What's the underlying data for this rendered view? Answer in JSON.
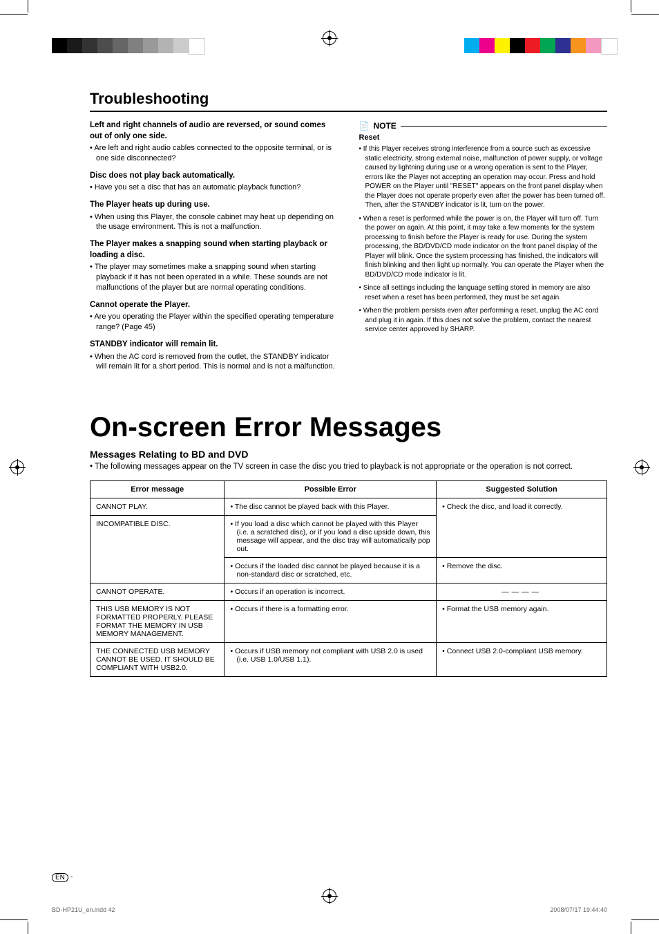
{
  "print_marks": {
    "bw_swatches": [
      "#000000",
      "#1a1a1a",
      "#333333",
      "#4d4d4d",
      "#666666",
      "#808080",
      "#999999",
      "#b3b3b3",
      "#cccccc",
      "#ffffff"
    ],
    "color_swatches": [
      "#00aeef",
      "#ec008c",
      "#fff200",
      "#000000",
      "#ed1c24",
      "#00a651",
      "#2e3192",
      "#f7941d",
      "#f49ac1",
      "#ffffff"
    ]
  },
  "section_title": "Troubleshooting",
  "troubleshooting_left": [
    {
      "head": "Left and right channels of audio are reversed, or sound comes out of only one side.",
      "body": "Are left and right audio cables connected to the opposite terminal, or is one side disconnected?"
    },
    {
      "head": "Disc does not play back automatically.",
      "body": "Have you set a disc that has an automatic playback function?"
    },
    {
      "head": "The Player heats up during use.",
      "body": "When using this Player, the console cabinet may heat up depending on the usage environment. This is not a malfunction."
    },
    {
      "head": "The Player makes a snapping sound when starting playback or loading a disc.",
      "body": "The player may sometimes make a snapping sound when starting playback if it has not been operated in a while. These sounds are not malfunctions of the player but are normal operating conditions."
    },
    {
      "head": "Cannot operate the Player.",
      "body": "Are you operating the Player within the specified operating temperature range? (Page 45)"
    },
    {
      "head": "STANDBY indicator will remain lit.",
      "body": "When the AC cord is removed from the outlet, the STANDBY indicator will remain lit for a short period. This is normal and is not a malfunction."
    }
  ],
  "note": {
    "label": "NOTE",
    "sub": "Reset",
    "bullets": [
      "If this Player receives strong interference from a source such as excessive static electricity, strong external noise, malfunction of power supply, or voltage caused by lightning during use or a wrong operation is sent to the Player, errors like the Player not accepting an operation may occur. Press and hold POWER on the Player until \"RESET\" appears on the front panel display when the Player does not operate properly even after the power has been turned off. Then, after the STANDBY indicator is lit, turn on the power.",
      "When a reset is performed while the power is on, the Player will turn off. Turn the power on again. At this point, it may take a few moments for the system processing to finish before the Player is ready for use. During the system processing, the BD/DVD/CD mode indicator on the front panel display of the Player will blink. Once the system processing has finished, the indicators will finish blinking and then light up normally. You can operate the Player when the BD/DVD/CD mode indicator is lit.",
      "Since all settings including the language setting stored in memory are also reset when a reset has been performed, they must be set again.",
      "When the problem persists even after performing a reset, unplug the AC cord and plug it in again. If this does not solve the problem, contact the nearest service center approved by SHARP."
    ]
  },
  "big_title": "On-screen Error Messages",
  "sub_title": "Messages Relating to BD and DVD",
  "intro": "The following messages appear on the TV screen in case the disc you tried to playback is not appropriate or the operation is not correct.",
  "table": {
    "headers": [
      "Error message",
      "Possible Error",
      "Suggested Solution"
    ],
    "col_widths": [
      "26%",
      "41%",
      "33%"
    ],
    "rows": [
      {
        "msg": "CANNOT PLAY.",
        "err": "The disc cannot be played back with this Player.",
        "sol": "Check the disc, and load it correctly.",
        "rowspan_sol": 1
      },
      {
        "msg": "INCOMPATIBLE DISC.",
        "err": "If you load a disc which cannot be played with this Player (i.e. a scratched disc), or if you load a disc upside down, this message will appear, and the disc tray will automatically pop out.",
        "sol": "",
        "msg_rowspan": 2,
        "sol_merge_up": true
      },
      {
        "msg": "",
        "err": "Occurs if the loaded disc cannot be played because it is a non-standard disc or scratched, etc.",
        "sol": "Remove the disc."
      },
      {
        "msg": "CANNOT OPERATE.",
        "err": "Occurs if an operation is incorrect.",
        "sol": "—",
        "dash": true
      },
      {
        "msg": "THIS USB MEMORY IS NOT FORMATTED PROPERLY. PLEASE FORMAT THE MEMORY IN USB MEMORY MANAGEMENT.",
        "err": "Occurs if there is a formatting error.",
        "sol": "Format the USB memory again."
      },
      {
        "msg": "THE CONNECTED USB MEMORY CANNOT BE USED. IT SHOULD BE COMPLIANT WITH USB2.0.",
        "err": "Occurs if USB memory not compliant with USB 2.0 is used (i.e. USB 1.0/USB 1.1).",
        "sol": "Connect USB 2.0-compliant USB memory."
      }
    ]
  },
  "footer": {
    "left": "BD-HP21U_en.indd   42",
    "right": "2008/07/17   19:44:40",
    "lang": "EN",
    "dash": "-"
  }
}
